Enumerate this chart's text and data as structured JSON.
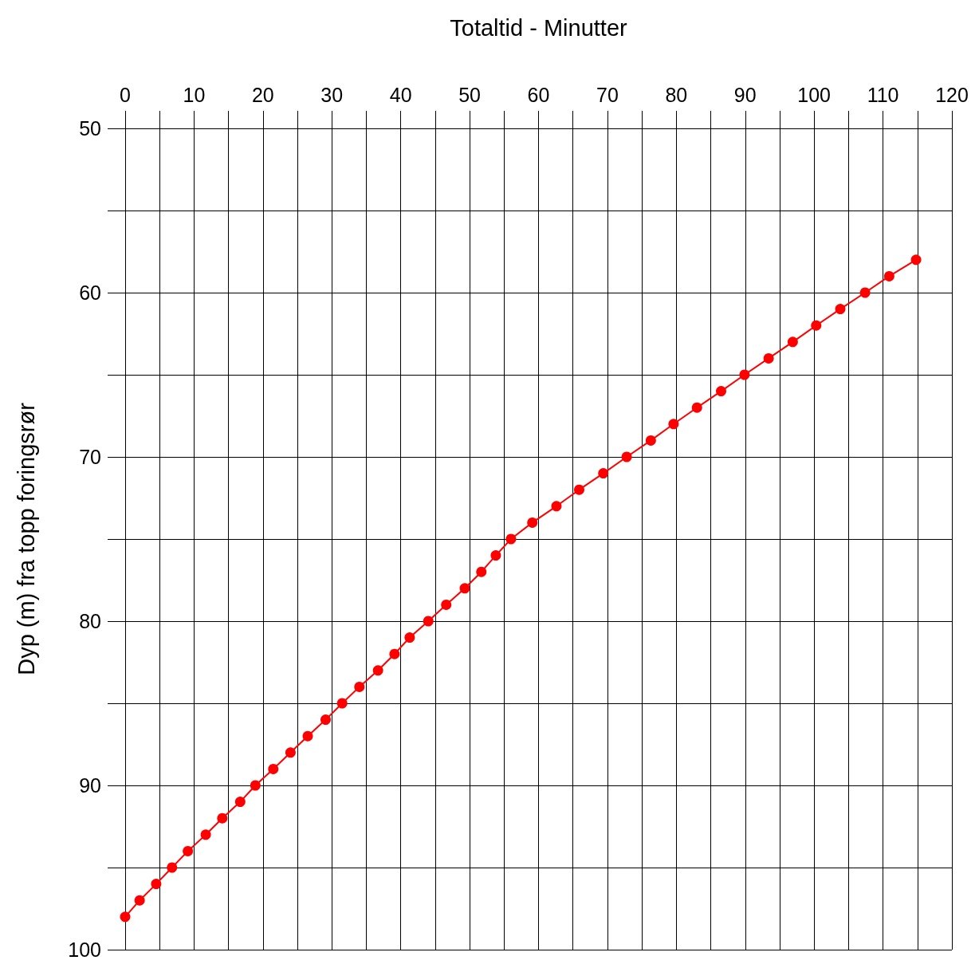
{
  "chart_data": {
    "type": "line",
    "xlabel": "Totaltid - Minutter",
    "ylabel": "Dyp (m) fra topp foringsrør",
    "x": [
      0,
      2.1,
      4.5,
      6.8,
      9.1,
      11.7,
      14.1,
      16.7,
      18.9,
      21.5,
      24.0,
      26.5,
      29.1,
      31.5,
      34.0,
      36.7,
      39.1,
      41.3,
      44.0,
      46.6,
      49.3,
      51.7,
      53.8,
      56.0,
      59.1,
      62.6,
      65.9,
      69.4,
      72.8,
      76.3,
      79.6,
      83.0,
      86.5,
      89.9,
      93.4,
      96.9,
      100.3,
      103.8,
      107.4,
      110.9,
      114.8
    ],
    "series": [
      {
        "color": "#ff0000",
        "values": [
          98,
          97,
          96,
          95,
          94,
          93,
          92,
          91,
          90,
          89,
          88,
          87,
          86,
          85,
          84,
          83,
          82,
          81,
          80,
          79,
          78,
          77,
          76,
          75,
          74,
          73,
          72,
          71,
          70,
          69,
          68,
          67,
          66,
          65,
          64,
          63,
          62,
          61,
          60,
          59,
          58
        ]
      }
    ],
    "xlim": [
      0,
      120
    ],
    "xticks": [
      0,
      {
        "value": 5,
        "label": null
      },
      10,
      {
        "value": 15,
        "label": null
      },
      20,
      {
        "value": 25,
        "label": null
      },
      30,
      {
        "value": 35,
        "label": null
      },
      40,
      {
        "value": 45,
        "label": null
      },
      50,
      {
        "value": 55,
        "label": null
      },
      60,
      {
        "value": 65,
        "label": null
      },
      70,
      {
        "value": 75,
        "label": null
      },
      80,
      {
        "value": 85,
        "label": null
      },
      90,
      {
        "value": 95,
        "label": null
      },
      100,
      {
        "value": 105,
        "label": null
      },
      110,
      {
        "value": 115,
        "label": null
      },
      120
    ],
    "ylim": [
      100,
      50
    ],
    "yticks": [
      50,
      {
        "value": 55,
        "label": null
      },
      60,
      {
        "value": 65,
        "label": null
      },
      70,
      {
        "value": 75,
        "label": null
      },
      80,
      {
        "value": 85,
        "label": null
      },
      90,
      {
        "value": 95,
        "label": null
      },
      100
    ],
    "grid": true,
    "marker": "circle",
    "line_style": "solid"
  }
}
